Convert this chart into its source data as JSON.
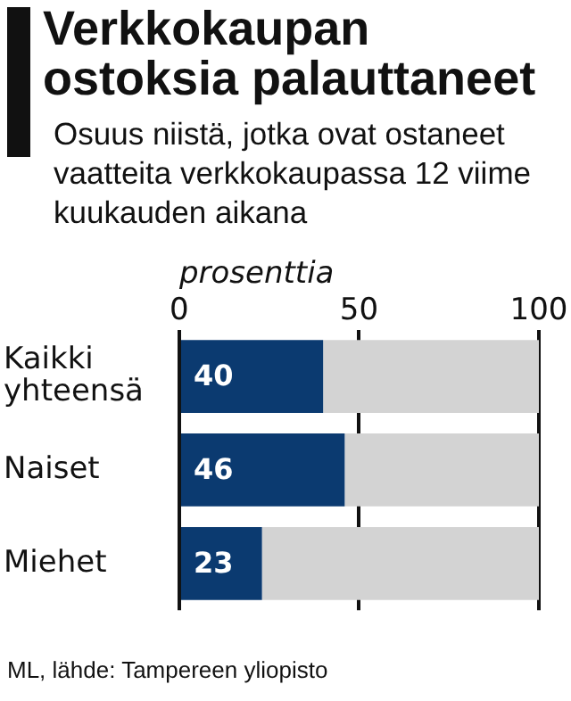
{
  "chart_data": {
    "type": "bar",
    "orientation": "horizontal",
    "stacked": true,
    "title": "Verkkokaupan ostoksia palauttaneet",
    "subtitle": "Osuus niistä, jotka ovat ostaneet vaatteita verkkokaupassa 12 viime kuukauden aikana",
    "xlabel": "prosenttia",
    "categories": [
      "Kaikki yhteensä",
      "Naiset",
      "Miehet"
    ],
    "series": [
      {
        "color": "#0b3a70",
        "values": [
          40,
          46,
          23
        ],
        "value_labels": [
          "40",
          "46",
          "23"
        ]
      },
      {
        "color": "#d3d3d3",
        "values": [
          60,
          54,
          77
        ]
      }
    ],
    "xlim": [
      0,
      100
    ],
    "xticks": [
      0,
      50,
      100
    ],
    "grid": "x",
    "legend": false,
    "annotations": [
      "ML, lähde: Tampereen yliopisto"
    ]
  }
}
